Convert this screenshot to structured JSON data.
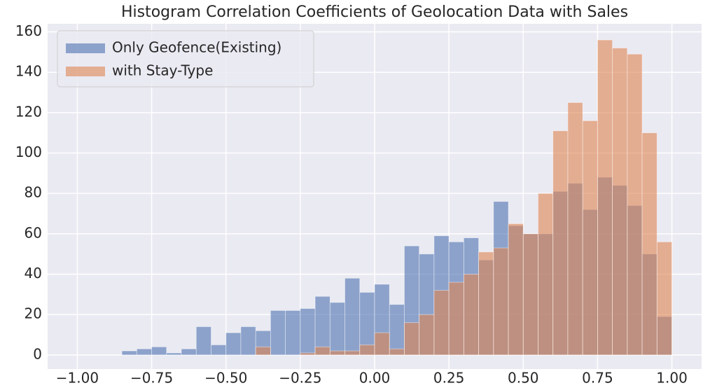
{
  "chart_data": {
    "type": "histogram",
    "title": "Histogram Correlation Coefficients of Geolocation Data with Sales",
    "bins": [
      -0.85,
      -0.8,
      -0.75,
      -0.7,
      -0.65,
      -0.6,
      -0.55,
      -0.5,
      -0.45,
      -0.4,
      -0.35,
      -0.3,
      -0.25,
      -0.2,
      -0.15,
      -0.1,
      -0.05,
      0,
      0.05,
      0.1,
      0.15,
      0.2,
      0.25,
      0.3,
      0.35,
      0.4,
      0.45,
      0.5,
      0.55,
      0.6,
      0.65,
      0.7,
      0.75,
      0.8,
      0.85,
      0.9,
      0.95,
      1.0
    ],
    "series": [
      {
        "name": "Only Geofence(Existing)",
        "color": "#4c72b0",
        "values": [
          2,
          3,
          4,
          1,
          3,
          14,
          5,
          11,
          14,
          12,
          22,
          22,
          23,
          29,
          26,
          38,
          31,
          35,
          25,
          54,
          50,
          59,
          56,
          58,
          47,
          76,
          64,
          60,
          60,
          81,
          85,
          72,
          88,
          84,
          74,
          50,
          19
        ]
      },
      {
        "name": "with Stay-Type",
        "color": "#dd8452",
        "values": [
          0,
          0,
          0,
          0,
          0,
          0,
          0,
          0,
          0,
          4,
          0,
          0,
          1,
          4,
          2,
          2,
          5,
          11,
          3,
          16,
          20,
          32,
          36,
          40,
          51,
          53,
          65,
          60,
          80,
          111,
          125,
          116,
          156,
          152,
          149,
          110,
          56
        ]
      }
    ],
    "xlim": [
      -1.1,
      1.1
    ],
    "ylim": [
      -7,
      164
    ],
    "xticks": [
      {
        "value": -1,
        "label": "−1.00"
      },
      {
        "value": -0.75,
        "label": "−0.75"
      },
      {
        "value": -0.5,
        "label": "−0.50"
      },
      {
        "value": -0.25,
        "label": "−0.25"
      },
      {
        "value": 0,
        "label": "0.00"
      },
      0.25,
      {
        "value": 0.5,
        "label": "0.50"
      },
      0.75,
      {
        "value": 1,
        "label": "1.00"
      }
    ],
    "yticks": [
      0,
      20,
      40,
      60,
      80,
      100,
      120,
      140,
      160
    ],
    "grid": true,
    "legend": "upper left",
    "opacity": 0.6
  }
}
